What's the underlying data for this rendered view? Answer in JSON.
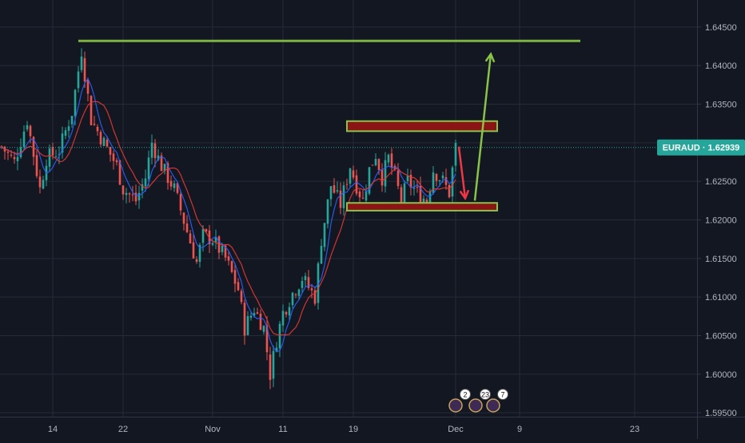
{
  "colors": {
    "background": "#131722",
    "grid": "#262b38",
    "axis_border": "#2f3546",
    "axis_text": "#b2b5be",
    "bull": "#26a69a",
    "bear": "#ef5350",
    "ma_fast": "#2962ff",
    "ma_slow": "#e53935",
    "resistance_line": "#7cb342",
    "zone_fill": "#8b1414",
    "zone_border": "#8bc34a",
    "arrow_up": "#8bc34a",
    "arrow_down": "#f23645",
    "price_label_bg": "#26a69a",
    "price_dotted": "#26a69a"
  },
  "chart_data": {
    "type": "candlestick",
    "symbol": "EURAUD",
    "last_price_label": "EURAUD · 1.62939",
    "last_price": 1.62939,
    "ylim": [
      1.5945,
      1.6485
    ],
    "y_ticks": [
      1.645,
      1.64,
      1.635,
      1.63,
      1.625,
      1.62,
      1.615,
      1.61,
      1.605,
      1.6,
      1.595
    ],
    "y_tick_labels": [
      "1.64500",
      "1.64000",
      "1.63500",
      "1.63000",
      "1.62500",
      "1.62000",
      "1.61500",
      "1.61000",
      "1.60500",
      "1.60000",
      "1.59500"
    ],
    "x_ticks": [
      {
        "label": "14",
        "bar": 16
      },
      {
        "label": "22",
        "bar": 38
      },
      {
        "label": "Nov",
        "bar": 66
      },
      {
        "label": "11",
        "bar": 88
      },
      {
        "label": "19",
        "bar": 110
      },
      {
        "label": "Dec",
        "bar": 142
      },
      {
        "label": "9",
        "bar": 162
      },
      {
        "label": "23",
        "bar": 198
      }
    ],
    "bar_spacing": 4.0,
    "first_bar_x": 2,
    "price_path": [
      [
        0,
        1.6295
      ],
      [
        4,
        1.6275
      ],
      [
        8,
        1.633
      ],
      [
        12,
        1.624
      ],
      [
        14,
        1.628
      ],
      [
        18,
        1.629
      ],
      [
        22,
        1.634
      ],
      [
        25,
        1.642
      ],
      [
        28,
        1.633
      ],
      [
        32,
        1.63
      ],
      [
        36,
        1.627
      ],
      [
        38,
        1.624
      ],
      [
        42,
        1.6225
      ],
      [
        45,
        1.6255
      ],
      [
        47,
        1.63
      ],
      [
        50,
        1.627
      ],
      [
        54,
        1.624
      ],
      [
        58,
        1.6185
      ],
      [
        61,
        1.6145
      ],
      [
        63,
        1.618
      ],
      [
        66,
        1.6175
      ],
      [
        70,
        1.615
      ],
      [
        74,
        1.611
      ],
      [
        76,
        1.606
      ],
      [
        79,
        1.6085
      ],
      [
        82,
        1.606
      ],
      [
        84,
        1.6
      ],
      [
        86,
        1.6045
      ],
      [
        88,
        1.608
      ],
      [
        91,
        1.6105
      ],
      [
        94,
        1.6125
      ],
      [
        98,
        1.61
      ],
      [
        100,
        1.6175
      ],
      [
        103,
        1.6245
      ],
      [
        106,
        1.622
      ],
      [
        109,
        1.627
      ],
      [
        111,
        1.6245
      ],
      [
        113,
        1.6225
      ],
      [
        115,
        1.6265
      ],
      [
        117,
        1.6285
      ],
      [
        119,
        1.6255
      ],
      [
        121,
        1.628
      ],
      [
        123,
        1.6255
      ],
      [
        125,
        1.6225
      ],
      [
        127,
        1.625
      ],
      [
        130,
        1.6235
      ],
      [
        133,
        1.6225
      ],
      [
        135,
        1.6265
      ],
      [
        138,
        1.625
      ],
      [
        140,
        1.6235
      ],
      [
        142,
        1.6295
      ]
    ],
    "resistance_level": 1.6432,
    "resistance_from_bar": 24,
    "resistance_to_bar": 181,
    "upper_zone": [
      1.6315,
      1.6328
    ],
    "lower_zone": [
      1.6212,
      1.6222
    ],
    "zone_from_bar": 108,
    "zone_to_bar": 155,
    "arrow_down": {
      "from_bar": 143,
      "from_price": 1.6295,
      "to_bar": 145,
      "to_price": 1.6228
    },
    "arrow_up": {
      "from_bar": 148,
      "from_price": 1.6225,
      "to_bar": 153,
      "to_price": 1.6415
    },
    "event_badges": [
      "2",
      "23",
      "7"
    ]
  }
}
